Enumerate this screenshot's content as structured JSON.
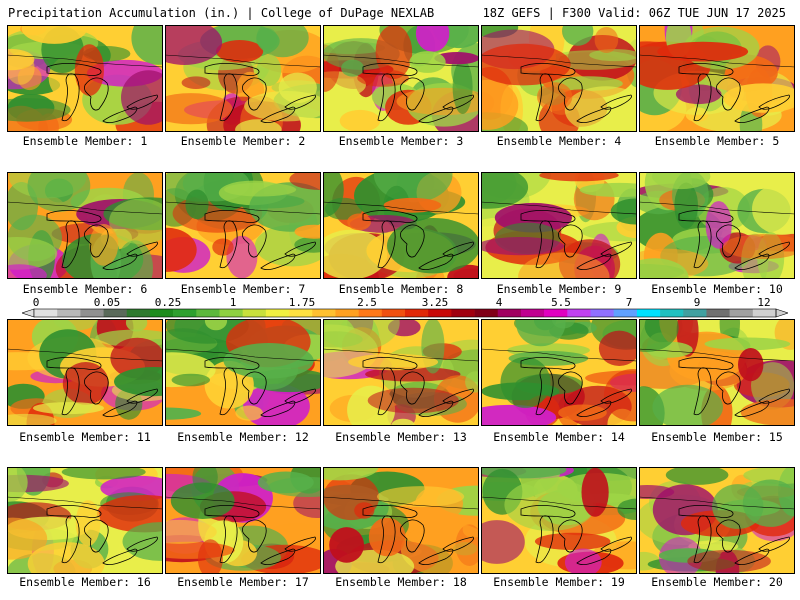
{
  "header": {
    "title": "Precipitation Accumulation (in.) | College of DuPage NEXLAB",
    "run_info": "18Z GEFS | F300 Valid: 06Z TUE JUN 17 2025"
  },
  "members": [
    {
      "label": "Ensemble Member: 1"
    },
    {
      "label": "Ensemble Member: 2"
    },
    {
      "label": "Ensemble Member: 3"
    },
    {
      "label": "Ensemble Member: 4"
    },
    {
      "label": "Ensemble Member: 5"
    },
    {
      "label": "Ensemble Member: 6"
    },
    {
      "label": "Ensemble Member: 7"
    },
    {
      "label": "Ensemble Member: 8"
    },
    {
      "label": "Ensemble Member: 9"
    },
    {
      "label": "Ensemble Member: 10"
    },
    {
      "label": "Ensemble Member: 11"
    },
    {
      "label": "Ensemble Member: 12"
    },
    {
      "label": "Ensemble Member: 13"
    },
    {
      "label": "Ensemble Member: 14"
    },
    {
      "label": "Ensemble Member: 15"
    },
    {
      "label": "Ensemble Member: 16"
    },
    {
      "label": "Ensemble Member: 17"
    },
    {
      "label": "Ensemble Member: 18"
    },
    {
      "label": "Ensemble Member: 19"
    },
    {
      "label": "Ensemble Member: 20"
    }
  ],
  "colorbar": {
    "tick_labels": [
      "0",
      "0.05",
      "0.25",
      "1",
      "1.75",
      "2.5",
      "3.25",
      "4",
      "5.5",
      "7",
      "9",
      "12"
    ],
    "colors": [
      "#e0e0e0",
      "#b8b8b8",
      "#909090",
      "#5a6a5a",
      "#2f7a2f",
      "#1e8c1e",
      "#2ea02e",
      "#5cb83c",
      "#8ed040",
      "#c8e03c",
      "#f0f040",
      "#ffe040",
      "#ffc030",
      "#ffa020",
      "#ff7818",
      "#f05010",
      "#e02808",
      "#c80808",
      "#a00010",
      "#800018",
      "#a00060",
      "#c00090",
      "#e000c0",
      "#c040f0",
      "#9070ff",
      "#60a0ff",
      "#00e0ff",
      "#20c0c0",
      "#40a0a0",
      "#707070",
      "#a0a0a0",
      "#d0d0d0"
    ]
  }
}
